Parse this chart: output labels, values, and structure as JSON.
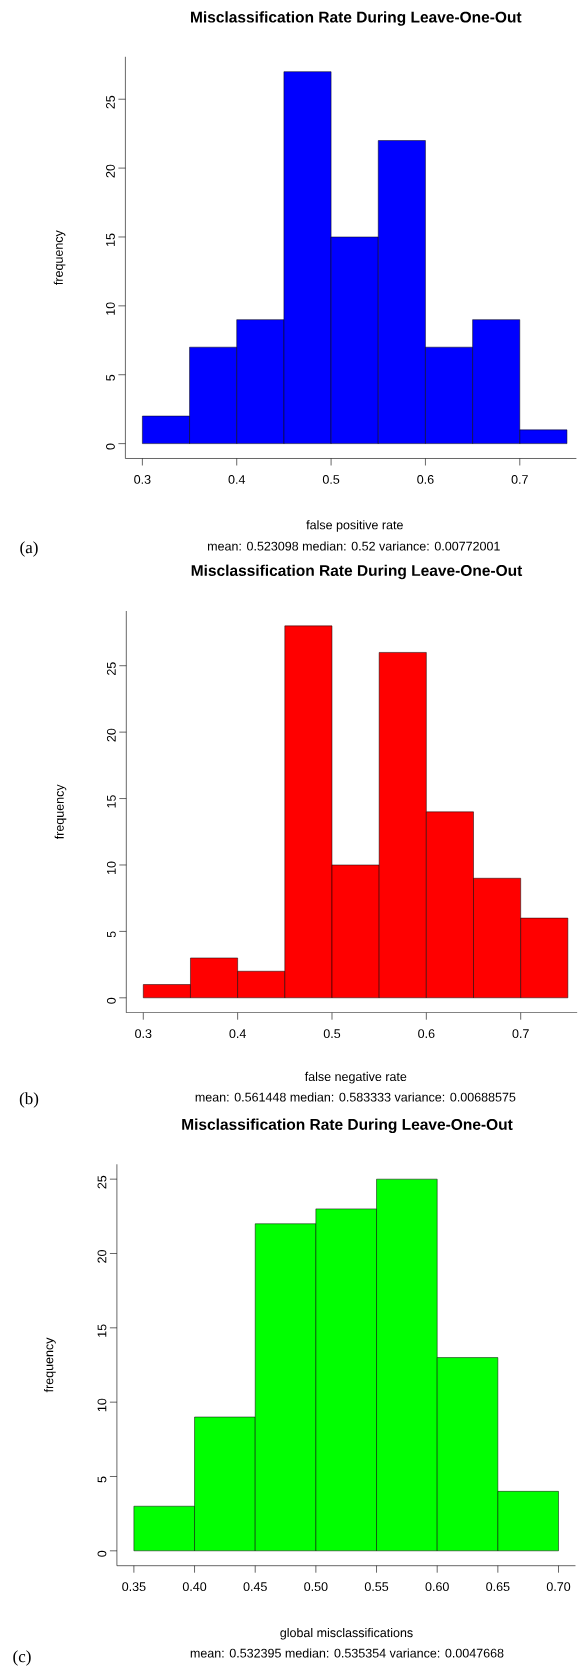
{
  "chart_data": [
    {
      "type": "histogram",
      "title": "Misclassification Rate During Leave-One-Out",
      "xlabel": "false positive rate",
      "ylabel": "frequency",
      "color": "#0000ff",
      "bins": [
        0.3,
        0.35,
        0.4,
        0.45,
        0.5,
        0.55,
        0.6,
        0.65,
        0.7,
        0.75
      ],
      "values": [
        2,
        7,
        9,
        27,
        15,
        22,
        7,
        9,
        1
      ],
      "xlim": [
        0.282,
        0.76
      ],
      "ylim": [
        -1.08,
        28.08
      ],
      "xticks": [
        0.3,
        0.4,
        0.5,
        0.6,
        0.7
      ],
      "yticks": [
        0,
        5,
        10,
        15,
        20,
        25
      ],
      "annotations": [
        "mean: 0.523098   median: 0.52   variance: 0.00772001",
        "(a)"
      ]
    },
    {
      "type": "histogram",
      "title": "Misclassification Rate During Leave-One-Out",
      "xlabel": "false negative rate",
      "ylabel": "frequency",
      "color": "#ff0000",
      "bins": [
        0.3,
        0.35,
        0.4,
        0.45,
        0.5,
        0.55,
        0.6,
        0.65,
        0.7,
        0.75
      ],
      "values": [
        1,
        3,
        2,
        28,
        10,
        26,
        14,
        9,
        6
      ],
      "xlim": [
        0.282,
        0.76
      ],
      "ylim": [
        -1.12,
        29.12
      ],
      "xticks": [
        0.3,
        0.4,
        0.5,
        0.6,
        0.7
      ],
      "yticks": [
        0,
        5,
        10,
        15,
        20,
        25
      ],
      "annotations": [
        "mean: 0.561448   median: 0.583333   variance: 0.00688575",
        "(b)"
      ]
    },
    {
      "type": "histogram",
      "title": "Misclassification Rate During Leave-One-Out",
      "xlabel": "global misclassifications",
      "ylabel": "frequency",
      "color": "#00ff00",
      "bins": [
        0.35,
        0.4,
        0.45,
        0.5,
        0.55,
        0.6,
        0.65,
        0.7
      ],
      "values": [
        3,
        9,
        22,
        23,
        25,
        13,
        4
      ],
      "xlim": [
        0.336,
        0.714
      ],
      "ylim": [
        -1,
        26
      ],
      "xticks": [
        0.35,
        {
          "value": 0.4,
          "label": "0.40"
        },
        0.45,
        {
          "value": 0.5,
          "label": "0.50"
        },
        0.55,
        {
          "value": 0.6,
          "label": "0.60"
        },
        0.65,
        {
          "value": 0.7,
          "label": "0.70"
        }
      ],
      "yticks": [
        0,
        5,
        10,
        15,
        20,
        25
      ],
      "annotations": [
        "mean: 0.532395   median: 0.535354   variance: 0.0047668",
        "(c)"
      ]
    }
  ]
}
